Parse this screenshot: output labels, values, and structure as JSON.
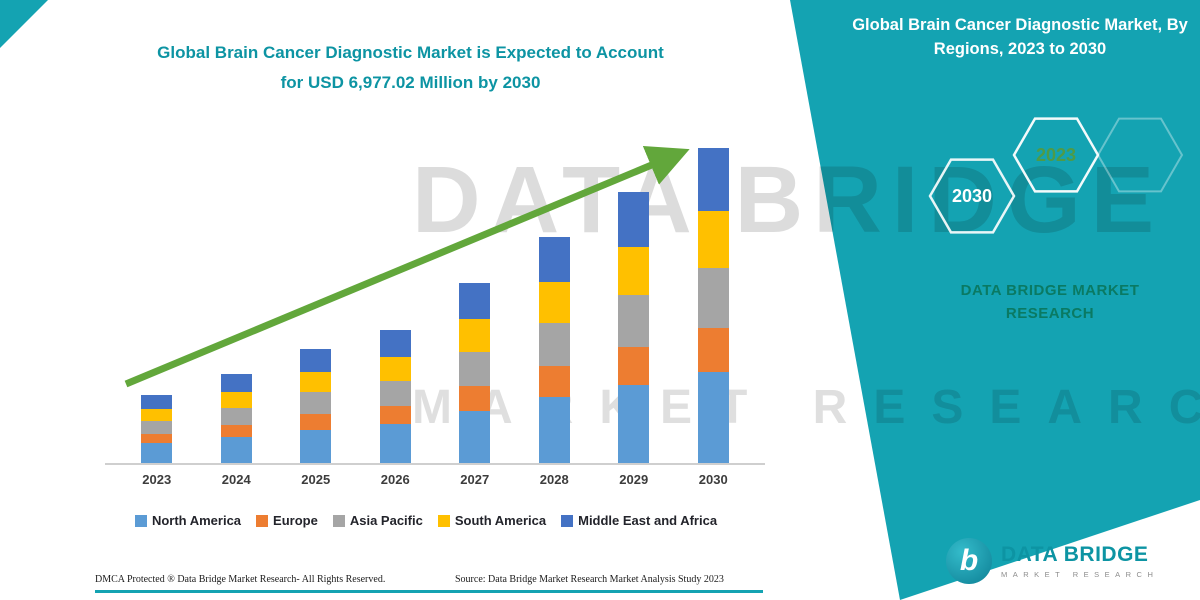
{
  "header": {
    "title_line1": "Global Brain Cancer Diagnostic Market is Expected to Account",
    "title_line2": "for USD 6,977.02 Million by 2030"
  },
  "side_panel": {
    "heading": "Global Brain Cancer Diagnostic Market, By Regions, 2023 to 2030",
    "hexagons": [
      {
        "year": "2030"
      },
      {
        "year": "2023"
      }
    ],
    "brand_line1": "DATA BRIDGE MARKET",
    "brand_line2": "RESEARCH"
  },
  "watermark": {
    "line1": "DATA BRIDGE",
    "line2": "MARKET RESEARCH"
  },
  "chart_data": {
    "type": "bar",
    "stacked": true,
    "title": "Global Brain Cancer Diagnostic Market is Expected to Account for USD 6,977.02 Million by 2030",
    "unit": "USD Million",
    "categories": [
      "2023",
      "2024",
      "2025",
      "2026",
      "2027",
      "2028",
      "2029",
      "2030"
    ],
    "series": [
      {
        "name": "North America",
        "color": "#5B9BD5",
        "values": [
          435,
          570,
          733,
          856,
          1155,
          1453,
          1738,
          2023
        ]
      },
      {
        "name": "Europe",
        "color": "#ED7D31",
        "values": [
          210,
          275,
          354,
          413,
          557,
          701,
          839,
          977
        ]
      },
      {
        "name": "Asia Pacific",
        "color": "#A5A5A5",
        "values": [
          285,
          374,
          480,
          561,
          757,
          952,
          1139,
          1326
        ]
      },
      {
        "name": "South America",
        "color": "#FFC000",
        "values": [
          270,
          354,
          455,
          531,
          717,
          902,
          1079,
          1256
        ]
      },
      {
        "name": "Middle East and Africa",
        "color": "#4472C4",
        "values": [
          300,
          393,
          505,
          590,
          796,
          1002,
          1199,
          1395.02
        ]
      }
    ],
    "totals": [
      1500,
      1966,
      2527,
      2951,
      3982,
      5010,
      5994,
      6977.02
    ],
    "xlabel": "",
    "ylabel": "",
    "ylim": [
      0,
      7200
    ],
    "grid": false,
    "legend_position": "bottom",
    "annotations": [
      "upward green trend arrow across bars"
    ]
  },
  "footer": {
    "dmca": "DMCA Protected ® Data Bridge Market Research-  All Rights Reserved.",
    "source": "Source: Data Bridge Market Research  Market Analysis Study 2023"
  },
  "logo": {
    "glyph": "b",
    "brand": "DATA BRIDGE",
    "tagline": "MARKET RESEARCH"
  },
  "colors": {
    "panel_teal": "#14A3B2",
    "title_teal": "#0D94A3",
    "arrow_green": "#62A73B",
    "panel_brand_text": "#0A7A63",
    "hex_2023_text": "#4E9B47",
    "axis_line": "#cfcfcf"
  }
}
